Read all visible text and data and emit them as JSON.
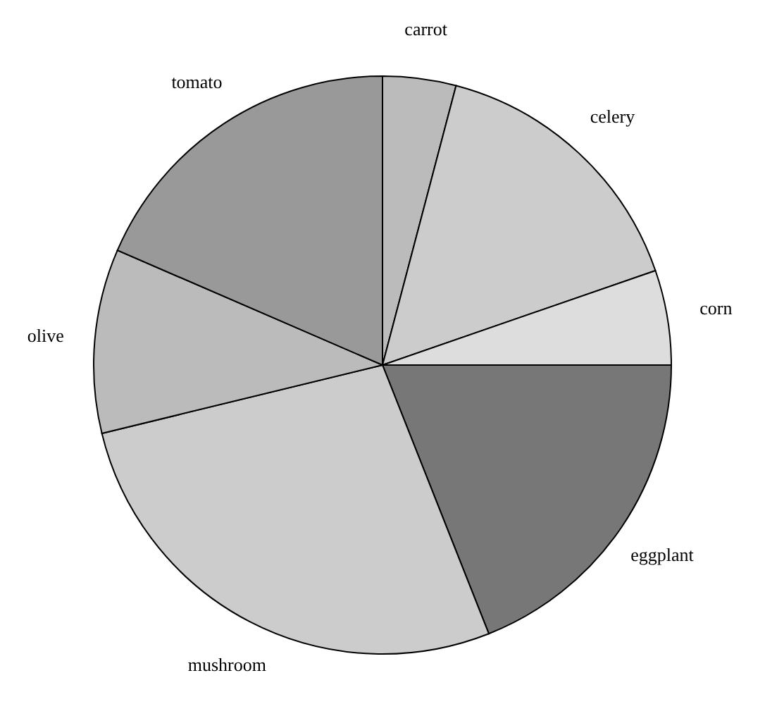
{
  "chart_data": {
    "type": "pie",
    "categories": [
      "carrot",
      "celery",
      "corn",
      "eggplant",
      "mushroom",
      "olive",
      "tomato"
    ],
    "values": [
      4.1,
      15.6,
      5.3,
      19.0,
      27.2,
      10.3,
      18.5
    ],
    "colors": [
      "#bbbbbb",
      "#cccccc",
      "#dddddd",
      "#777777",
      "#cccccc",
      "#bbbbbb",
      "#999999"
    ]
  }
}
